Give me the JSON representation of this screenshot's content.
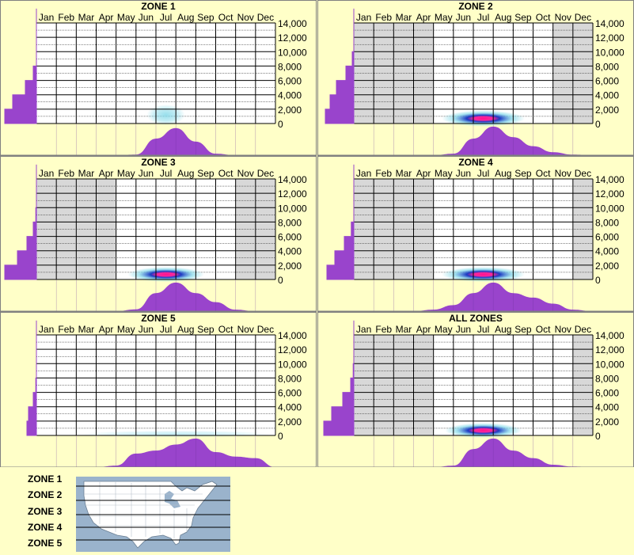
{
  "months": [
    "Jan",
    "Feb",
    "Mar",
    "Apr",
    "May",
    "Jun",
    "Jul",
    "Aug",
    "Sep",
    "Oct",
    "Nov",
    "Dec"
  ],
  "y_ticks": [
    "14,000",
    "12,000",
    "10,000",
    "8,000",
    "6,000",
    "4,000",
    "2,000",
    "0"
  ],
  "colors": {
    "background": "#ffffc8",
    "grid": "#000000",
    "inactive_month": "#d8d8d8",
    "histogram": "#9944cc",
    "heat_low": "#7fd8e8",
    "heat_mid": "#1030c0",
    "heat_high": "#ff1090"
  },
  "chart_data": [
    {
      "type": "heatmap",
      "title": "ZONE 1",
      "x": [
        "Jan",
        "Feb",
        "Mar",
        "Apr",
        "May",
        "Jun",
        "Jul",
        "Aug",
        "Sep",
        "Oct",
        "Nov",
        "Dec"
      ],
      "ylim": [
        0,
        14000
      ],
      "inactive_months": [],
      "heat_center": {
        "month": 6.5,
        "elevation": 1200
      },
      "heat_spread": {
        "month": 0.6,
        "elevation": 900
      },
      "heat_intensity": 0.45,
      "month_profile": [
        0,
        0,
        0,
        0,
        0,
        0.02,
        0.55,
        0.9,
        0.45,
        0.05,
        0,
        0,
        0
      ],
      "elevation_profile": [
        1.0,
        0.75,
        0.35,
        0.1,
        0,
        0,
        0,
        0
      ]
    },
    {
      "type": "heatmap",
      "title": "ZONE 2",
      "x": [
        "Jan",
        "Feb",
        "Mar",
        "Apr",
        "May",
        "Jun",
        "Jul",
        "Aug",
        "Sep",
        "Oct",
        "Nov",
        "Dec"
      ],
      "ylim": [
        0,
        14000
      ],
      "inactive_months": [
        "Jan",
        "Feb",
        "Mar",
        "Apr",
        "Nov",
        "Dec"
      ],
      "heat_center": {
        "month": 6.5,
        "elevation": 700
      },
      "heat_spread": {
        "month": 1.3,
        "elevation": 700
      },
      "heat_intensity": 1.0,
      "month_profile": [
        0,
        0,
        0,
        0,
        0,
        0.05,
        0.55,
        0.95,
        0.6,
        0.3,
        0.1,
        0.02,
        0
      ],
      "elevation_profile": [
        0.9,
        0.75,
        0.55,
        0.25,
        0.05,
        0,
        0,
        0
      ]
    },
    {
      "type": "heatmap",
      "title": "ZONE 3",
      "x": [
        "Jan",
        "Feb",
        "Mar",
        "Apr",
        "May",
        "Jun",
        "Jul",
        "Aug",
        "Sep",
        "Oct",
        "Nov",
        "Dec"
      ],
      "ylim": [
        0,
        14000
      ],
      "inactive_months": [
        "Jan",
        "Feb",
        "Mar",
        "Apr",
        "Nov",
        "Dec"
      ],
      "heat_center": {
        "month": 6.5,
        "elevation": 700
      },
      "heat_spread": {
        "month": 1.2,
        "elevation": 650
      },
      "heat_intensity": 1.0,
      "month_profile": [
        0,
        0,
        0,
        0,
        0,
        0.06,
        0.6,
        0.95,
        0.6,
        0.3,
        0.05,
        0,
        0
      ],
      "elevation_profile": [
        1.0,
        0.6,
        0.3,
        0.1,
        0.02,
        0,
        0,
        0
      ]
    },
    {
      "type": "heatmap",
      "title": "ZONE 4",
      "x": [
        "Jan",
        "Feb",
        "Mar",
        "Apr",
        "May",
        "Jun",
        "Jul",
        "Aug",
        "Sep",
        "Oct",
        "Nov",
        "Dec"
      ],
      "ylim": [
        0,
        14000
      ],
      "inactive_months": [
        "Jan",
        "Feb",
        "Mar",
        "Apr",
        "Dec"
      ],
      "heat_center": {
        "month": 6.5,
        "elevation": 700
      },
      "heat_spread": {
        "month": 1.3,
        "elevation": 650
      },
      "heat_intensity": 0.95,
      "month_profile": [
        0,
        0,
        0,
        0,
        0.05,
        0.2,
        0.6,
        0.95,
        0.6,
        0.45,
        0.25,
        0.05,
        0
      ],
      "elevation_profile": [
        0.85,
        0.6,
        0.3,
        0.08,
        0,
        0,
        0,
        0
      ]
    },
    {
      "type": "heatmap",
      "title": "ZONE 5",
      "x": [
        "Jan",
        "Feb",
        "Mar",
        "Apr",
        "May",
        "Jun",
        "Jul",
        "Aug",
        "Sep",
        "Oct",
        "Nov",
        "Dec"
      ],
      "ylim": [
        0,
        14000
      ],
      "inactive_months": [],
      "heat_center": {
        "month": 7,
        "elevation": 200
      },
      "heat_spread": {
        "month": 3.0,
        "elevation": 300
      },
      "heat_intensity": 0.25,
      "month_profile": [
        0,
        0,
        0,
        0,
        0.05,
        0.45,
        0.55,
        0.75,
        0.95,
        0.5,
        0.35,
        0.3,
        0
      ],
      "elevation_profile": [
        0.3,
        0.25,
        0.1,
        0.02,
        0,
        0,
        0,
        0
      ]
    },
    {
      "type": "heatmap",
      "title": "ALL ZONES",
      "x": [
        "Jan",
        "Feb",
        "Mar",
        "Apr",
        "May",
        "Jun",
        "Jul",
        "Aug",
        "Sep",
        "Oct",
        "Nov",
        "Dec"
      ],
      "ylim": [
        0,
        14000
      ],
      "inactive_months": [
        "Jan",
        "Feb",
        "Mar",
        "Apr",
        "Dec"
      ],
      "heat_center": {
        "month": 6.5,
        "elevation": 700
      },
      "heat_spread": {
        "month": 1.2,
        "elevation": 650
      },
      "heat_intensity": 1.0,
      "month_profile": [
        0,
        0,
        0,
        0,
        0,
        0.05,
        0.6,
        0.95,
        0.55,
        0.3,
        0.08,
        0.02,
        0
      ],
      "elevation_profile": [
        0.95,
        0.7,
        0.35,
        0.1,
        0.02,
        0,
        0,
        0
      ]
    }
  ],
  "legend": {
    "zones": [
      "ZONE 1",
      "ZONE 2",
      "ZONE 3",
      "ZONE 4",
      "ZONE 5"
    ]
  }
}
